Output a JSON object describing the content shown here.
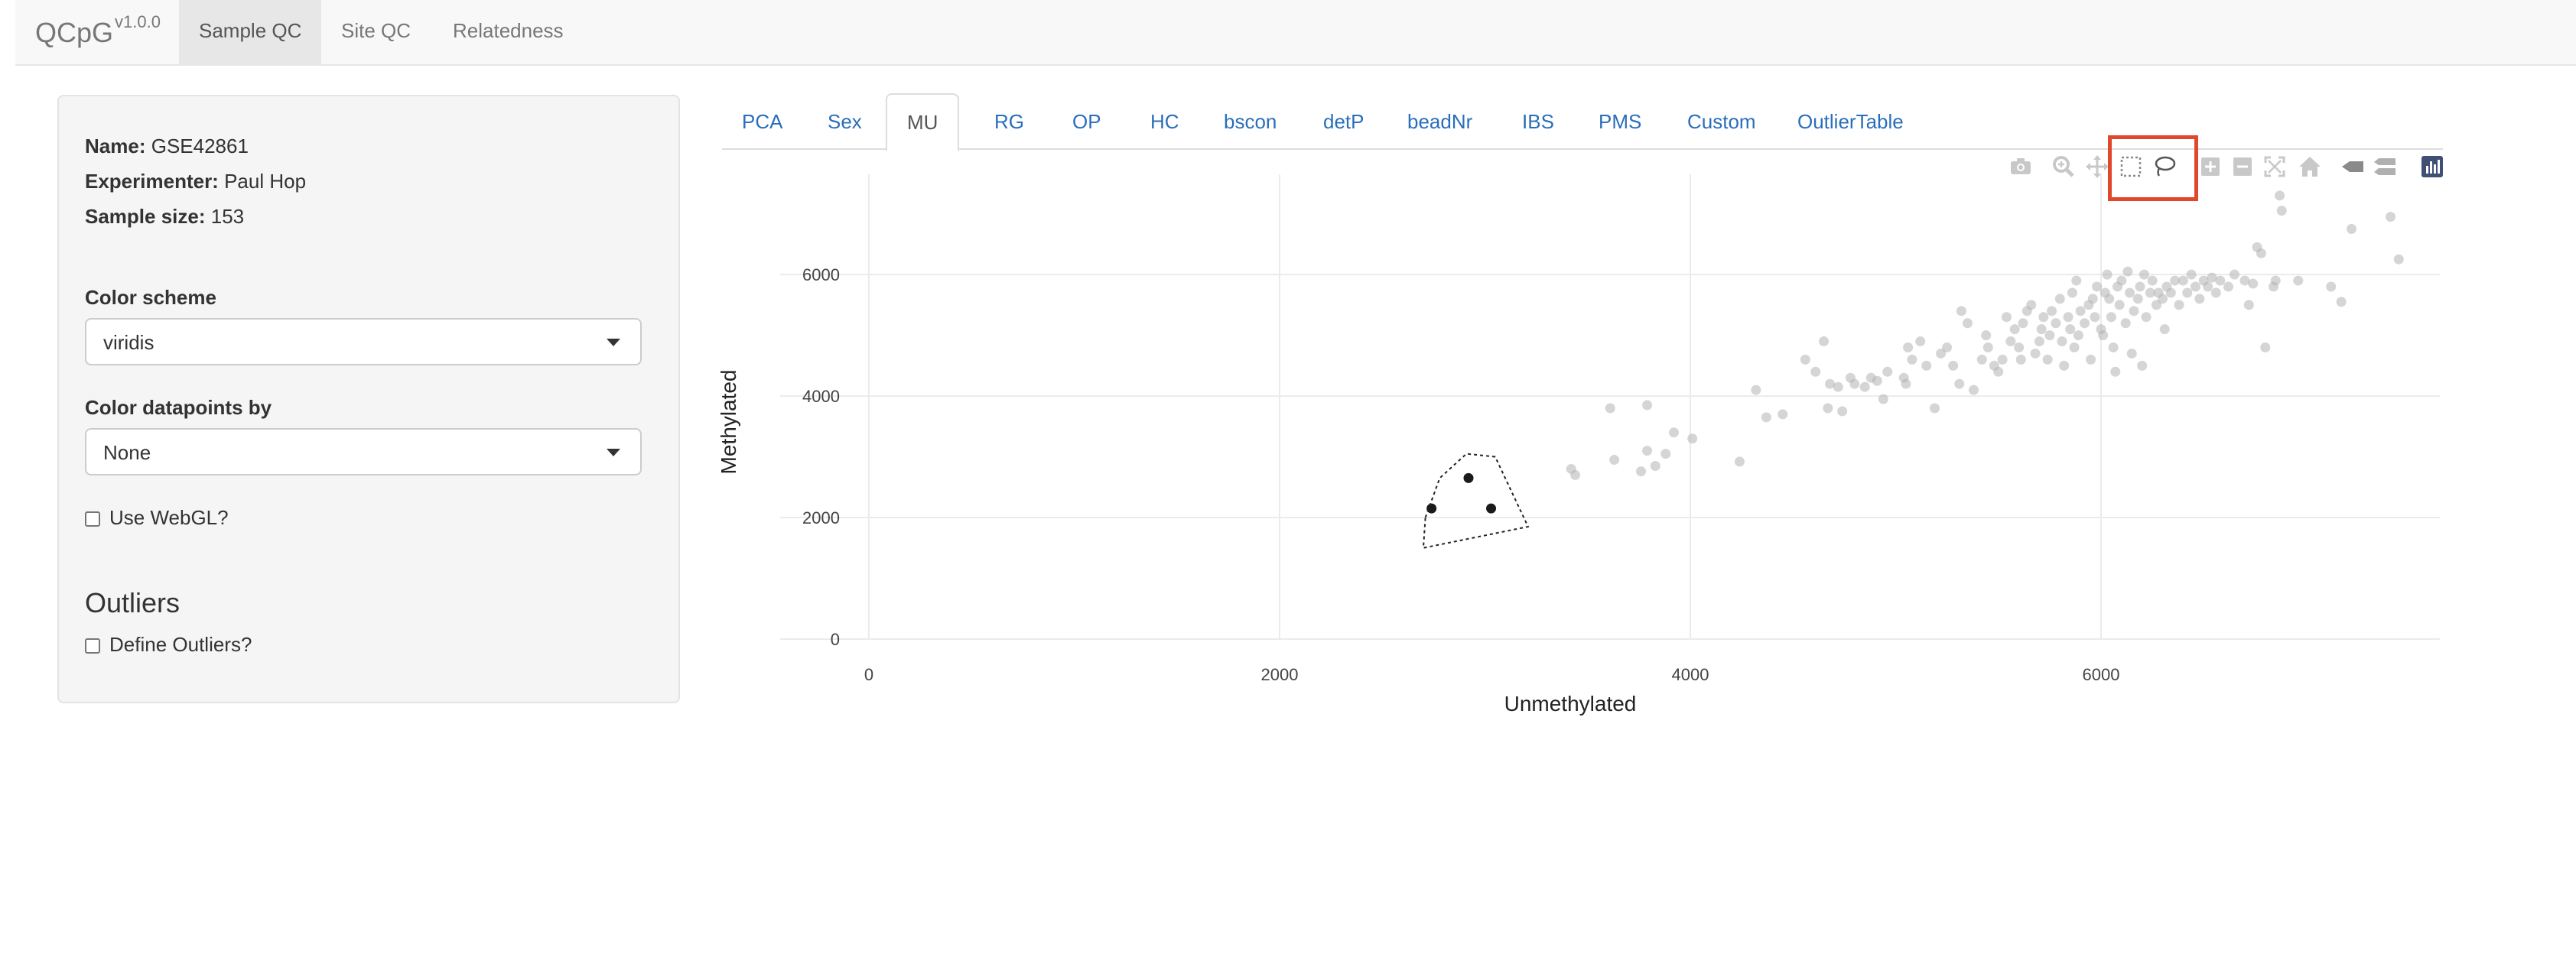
{
  "navbar": {
    "brand": "QCpG",
    "version": "v1.0.0",
    "tabs": [
      {
        "label": "Sample QC",
        "active": true
      },
      {
        "label": "Site QC",
        "active": false
      },
      {
        "label": "Relatedness",
        "active": false
      }
    ]
  },
  "sidebar": {
    "name_label": "Name:",
    "name_value": "GSE42861",
    "experimenter_label": "Experimenter:",
    "experimenter_value": "Paul Hop",
    "sample_size_label": "Sample size:",
    "sample_size_value": "153",
    "color_scheme_label": "Color scheme",
    "color_scheme_value": "viridis",
    "color_datapoints_label": "Color datapoints by",
    "color_datapoints_value": "None",
    "webgl_label": "Use WebGL?",
    "webgl_checked": false,
    "outliers_heading": "Outliers",
    "define_outliers_label": "Define Outliers?",
    "define_outliers_checked": false
  },
  "content_tabs": [
    {
      "label": "PCA",
      "active": false
    },
    {
      "label": "Sex",
      "active": false
    },
    {
      "label": "MU",
      "active": true
    },
    {
      "label": "RG",
      "active": false
    },
    {
      "label": "OP",
      "active": false
    },
    {
      "label": "HC",
      "active": false
    },
    {
      "label": "bscon",
      "active": false
    },
    {
      "label": "detP",
      "active": false
    },
    {
      "label": "beadNr",
      "active": false
    },
    {
      "label": "IBS",
      "active": false
    },
    {
      "label": "PMS",
      "active": false
    },
    {
      "label": "Custom",
      "active": false
    },
    {
      "label": "OutlierTable",
      "active": false
    }
  ],
  "modebar": {
    "buttons": [
      "camera-icon",
      "zoom-icon",
      "pan-icon",
      "box-select-icon",
      "lasso-select-icon",
      "zoom-in-icon",
      "zoom-out-icon",
      "autoscale-icon",
      "reset-axes-icon",
      "hover-closest-icon",
      "hover-compare-icon",
      "plotly-logo-icon"
    ],
    "highlighted": [
      "box-select-icon",
      "lasso-select-icon"
    ],
    "highlight_color": "#e0472c"
  },
  "chart_data": {
    "type": "scatter",
    "title": "",
    "xlabel": "Unmethylated",
    "ylabel": "Methylated",
    "xlim": [
      -730,
      7650
    ],
    "ylim": [
      0,
      7650
    ],
    "xticks": [
      0,
      2000,
      4000,
      6000
    ],
    "yticks": [
      0,
      2000,
      4000,
      6000
    ],
    "grid": true,
    "point_color": "#b3b3b3",
    "selected_color": "#1a1a1a",
    "series": [
      {
        "values_xy": [
          [
            3420,
            2800
          ],
          [
            3440,
            2700
          ],
          [
            3610,
            3800
          ],
          [
            3630,
            2950
          ],
          [
            3760,
            2760
          ],
          [
            3790,
            3850
          ],
          [
            3790,
            3100
          ],
          [
            3830,
            2850
          ],
          [
            3880,
            3050
          ],
          [
            3920,
            3400
          ],
          [
            4010,
            3300
          ],
          [
            4240,
            2920
          ],
          [
            4320,
            4100
          ],
          [
            4370,
            3650
          ],
          [
            4450,
            3700
          ],
          [
            4560,
            4600
          ],
          [
            4610,
            4400
          ],
          [
            4650,
            4900
          ],
          [
            4670,
            3800
          ],
          [
            4680,
            4200
          ],
          [
            4720,
            4150
          ],
          [
            4740,
            3750
          ],
          [
            4780,
            4300
          ],
          [
            4800,
            4200
          ],
          [
            4850,
            4150
          ],
          [
            4880,
            4300
          ],
          [
            4910,
            4250
          ],
          [
            4940,
            3950
          ],
          [
            4960,
            4400
          ],
          [
            5040,
            4300
          ],
          [
            5050,
            4200
          ],
          [
            5060,
            4800
          ],
          [
            5080,
            4600
          ],
          [
            5120,
            4900
          ],
          [
            5150,
            4500
          ],
          [
            5190,
            3800
          ],
          [
            5220,
            4700
          ],
          [
            5250,
            4800
          ],
          [
            5280,
            4500
          ],
          [
            5310,
            4200
          ],
          [
            5320,
            5400
          ],
          [
            5350,
            5200
          ],
          [
            5380,
            4100
          ],
          [
            5420,
            4600
          ],
          [
            5440,
            5000
          ],
          [
            5450,
            4800
          ],
          [
            5480,
            4500
          ],
          [
            5500,
            4400
          ],
          [
            5520,
            4600
          ],
          [
            5540,
            5300
          ],
          [
            5560,
            4900
          ],
          [
            5580,
            5100
          ],
          [
            5600,
            4800
          ],
          [
            5610,
            4600
          ],
          [
            5620,
            5200
          ],
          [
            5640,
            5400
          ],
          [
            5660,
            5500
          ],
          [
            5680,
            4700
          ],
          [
            5700,
            4900
          ],
          [
            5710,
            5100
          ],
          [
            5720,
            5300
          ],
          [
            5740,
            4600
          ],
          [
            5750,
            5000
          ],
          [
            5760,
            5400
          ],
          [
            5780,
            5200
          ],
          [
            5800,
            5600
          ],
          [
            5810,
            4900
          ],
          [
            5820,
            4500
          ],
          [
            5840,
            5300
          ],
          [
            5850,
            5100
          ],
          [
            5860,
            5700
          ],
          [
            5870,
            4800
          ],
          [
            5880,
            5900
          ],
          [
            5890,
            5000
          ],
          [
            5900,
            5400
          ],
          [
            5920,
            5200
          ],
          [
            5940,
            5500
          ],
          [
            5950,
            4600
          ],
          [
            5960,
            5600
          ],
          [
            5970,
            5300
          ],
          [
            5980,
            5800
          ],
          [
            6000,
            5100
          ],
          [
            6010,
            5000
          ],
          [
            6020,
            5700
          ],
          [
            6030,
            6000
          ],
          [
            6040,
            5600
          ],
          [
            6050,
            5300
          ],
          [
            6060,
            4800
          ],
          [
            6070,
            4400
          ],
          [
            6080,
            5800
          ],
          [
            6090,
            5500
          ],
          [
            6100,
            5900
          ],
          [
            6120,
            5200
          ],
          [
            6130,
            6050
          ],
          [
            6140,
            5700
          ],
          [
            6150,
            4700
          ],
          [
            6160,
            5400
          ],
          [
            6180,
            5600
          ],
          [
            6190,
            5800
          ],
          [
            6200,
            4500
          ],
          [
            6210,
            6000
          ],
          [
            6220,
            5300
          ],
          [
            6240,
            5700
          ],
          [
            6250,
            5900
          ],
          [
            6270,
            5500
          ],
          [
            6280,
            5700
          ],
          [
            6300,
            5600
          ],
          [
            6310,
            5100
          ],
          [
            6320,
            5800
          ],
          [
            6340,
            5700
          ],
          [
            6360,
            5900
          ],
          [
            6380,
            5500
          ],
          [
            6400,
            5900
          ],
          [
            6420,
            5700
          ],
          [
            6440,
            6000
          ],
          [
            6460,
            5800
          ],
          [
            6480,
            5600
          ],
          [
            6500,
            5900
          ],
          [
            6520,
            5800
          ],
          [
            6540,
            5950
          ],
          [
            6560,
            5700
          ],
          [
            6580,
            5900
          ],
          [
            6620,
            5800
          ],
          [
            6650,
            6000
          ],
          [
            6700,
            5900
          ],
          [
            6720,
            5500
          ],
          [
            6740,
            5850
          ],
          [
            6760,
            6450
          ],
          [
            6780,
            6350
          ],
          [
            6800,
            4800
          ],
          [
            6840,
            5800
          ],
          [
            6850,
            5900
          ],
          [
            6870,
            7300
          ],
          [
            6880,
            7050
          ],
          [
            6960,
            5900
          ],
          [
            7120,
            5800
          ],
          [
            7170,
            5550
          ],
          [
            7220,
            6750
          ],
          [
            7410,
            6950
          ],
          [
            7450,
            6250
          ]
        ]
      },
      {
        "selected": true,
        "values_xy": [
          [
            2740,
            2150
          ],
          [
            2920,
            2650
          ],
          [
            3030,
            2150
          ]
        ]
      }
    ],
    "lasso_polygon": [
      [
        2710,
        2000
      ],
      [
        2780,
        2650
      ],
      [
        2910,
        3050
      ],
      [
        3050,
        3000
      ],
      [
        3210,
        1850
      ],
      [
        2700,
        1500
      ]
    ]
  }
}
